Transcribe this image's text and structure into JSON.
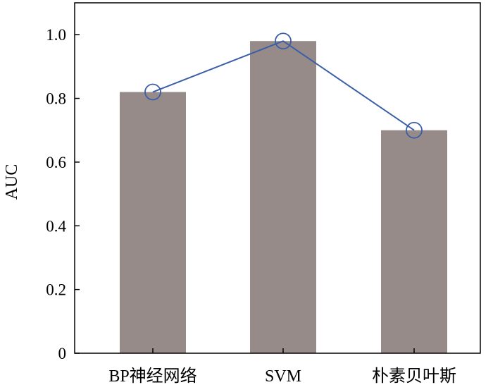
{
  "chart_data": {
    "type": "bar",
    "categories": [
      "BP神经网络",
      "SVM",
      "朴素贝叶斯"
    ],
    "series": [
      {
        "values": [
          0.82,
          0.98,
          0.7
        ],
        "render": "bar"
      },
      {
        "values": [
          0.82,
          0.98,
          0.7
        ],
        "render": "line-markers"
      }
    ],
    "title": "",
    "xlabel": "",
    "ylabel": "AUC",
    "ylim": [
      0,
      1.1
    ],
    "yticks": [
      0,
      0.2,
      0.4,
      0.6,
      0.8,
      1.0
    ],
    "ytick_labels": [
      "0",
      "0.2",
      "0.4",
      "0.6",
      "0.8",
      "1.0"
    ],
    "grid": false,
    "colors": {
      "bar": "#968b89",
      "line": "#3a5ea8",
      "axis": "#000000"
    }
  }
}
